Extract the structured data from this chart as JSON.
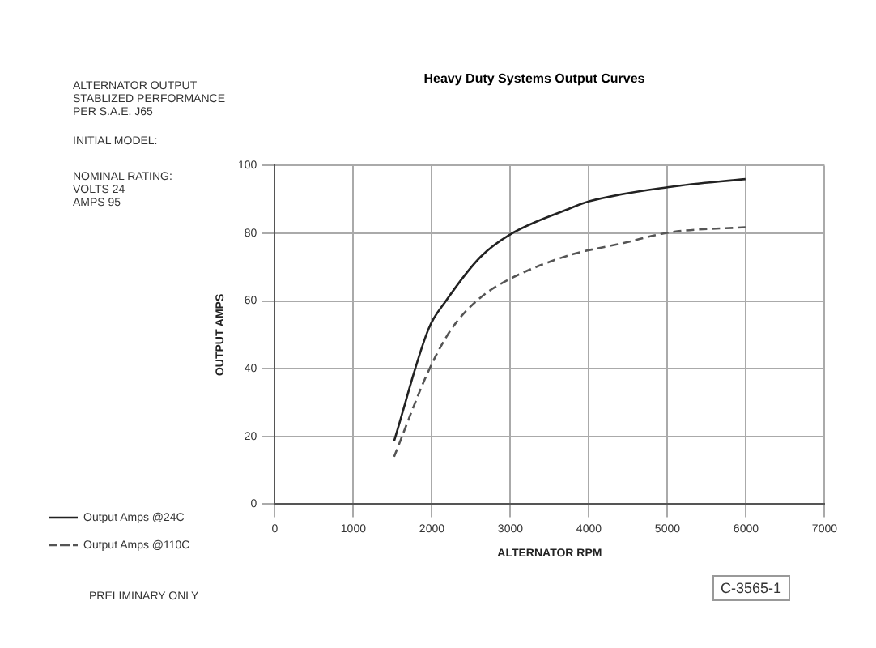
{
  "chart_data": {
    "type": "line",
    "title": "Heavy Duty Systems Output Curves",
    "xlabel": "ALTERNATOR RPM",
    "ylabel": "OUTPUT AMPS",
    "annotations": [
      "ALTERNATOR OUTPUT\nSTABLIZED PERFORMANCE\nPER S.A.E. J65",
      "INITIAL MODEL:",
      "NOMINAL RATING:\nVOLTS 24\nAMPS 95",
      "PRELIMINARY ONLY",
      "C-3565-1"
    ],
    "series": [
      {
        "name": "Output Amps @24C",
        "color": "#222222",
        "line_style": "solid",
        "x": [
          1519,
          1959,
          2179,
          2619,
          2986,
          3720,
          4013,
          5040,
          5994
        ],
        "values": [
          18.6,
          51.8,
          60,
          73,
          79.5,
          87,
          89.5,
          93.7,
          96
        ]
      },
      {
        "name": "Output Amps @110C",
        "color": "#555555",
        "line_style": "dashed",
        "x": [
          1519,
          1959,
          2252,
          2619,
          2986,
          3720,
          4453,
          5040,
          5994
        ],
        "values": [
          14,
          39.4,
          51.8,
          61,
          66.4,
          73.3,
          77.2,
          80.3,
          81.8
        ]
      }
    ],
    "xlim": [
      0,
      7000
    ],
    "xticks": [
      0,
      1000,
      2000,
      3000,
      4000,
      5000,
      6000,
      7000
    ],
    "ylim": [
      0,
      100
    ],
    "yticks": [
      0,
      20,
      40,
      60,
      80,
      100
    ],
    "grid": true,
    "legend": "left",
    "marker": "none"
  }
}
